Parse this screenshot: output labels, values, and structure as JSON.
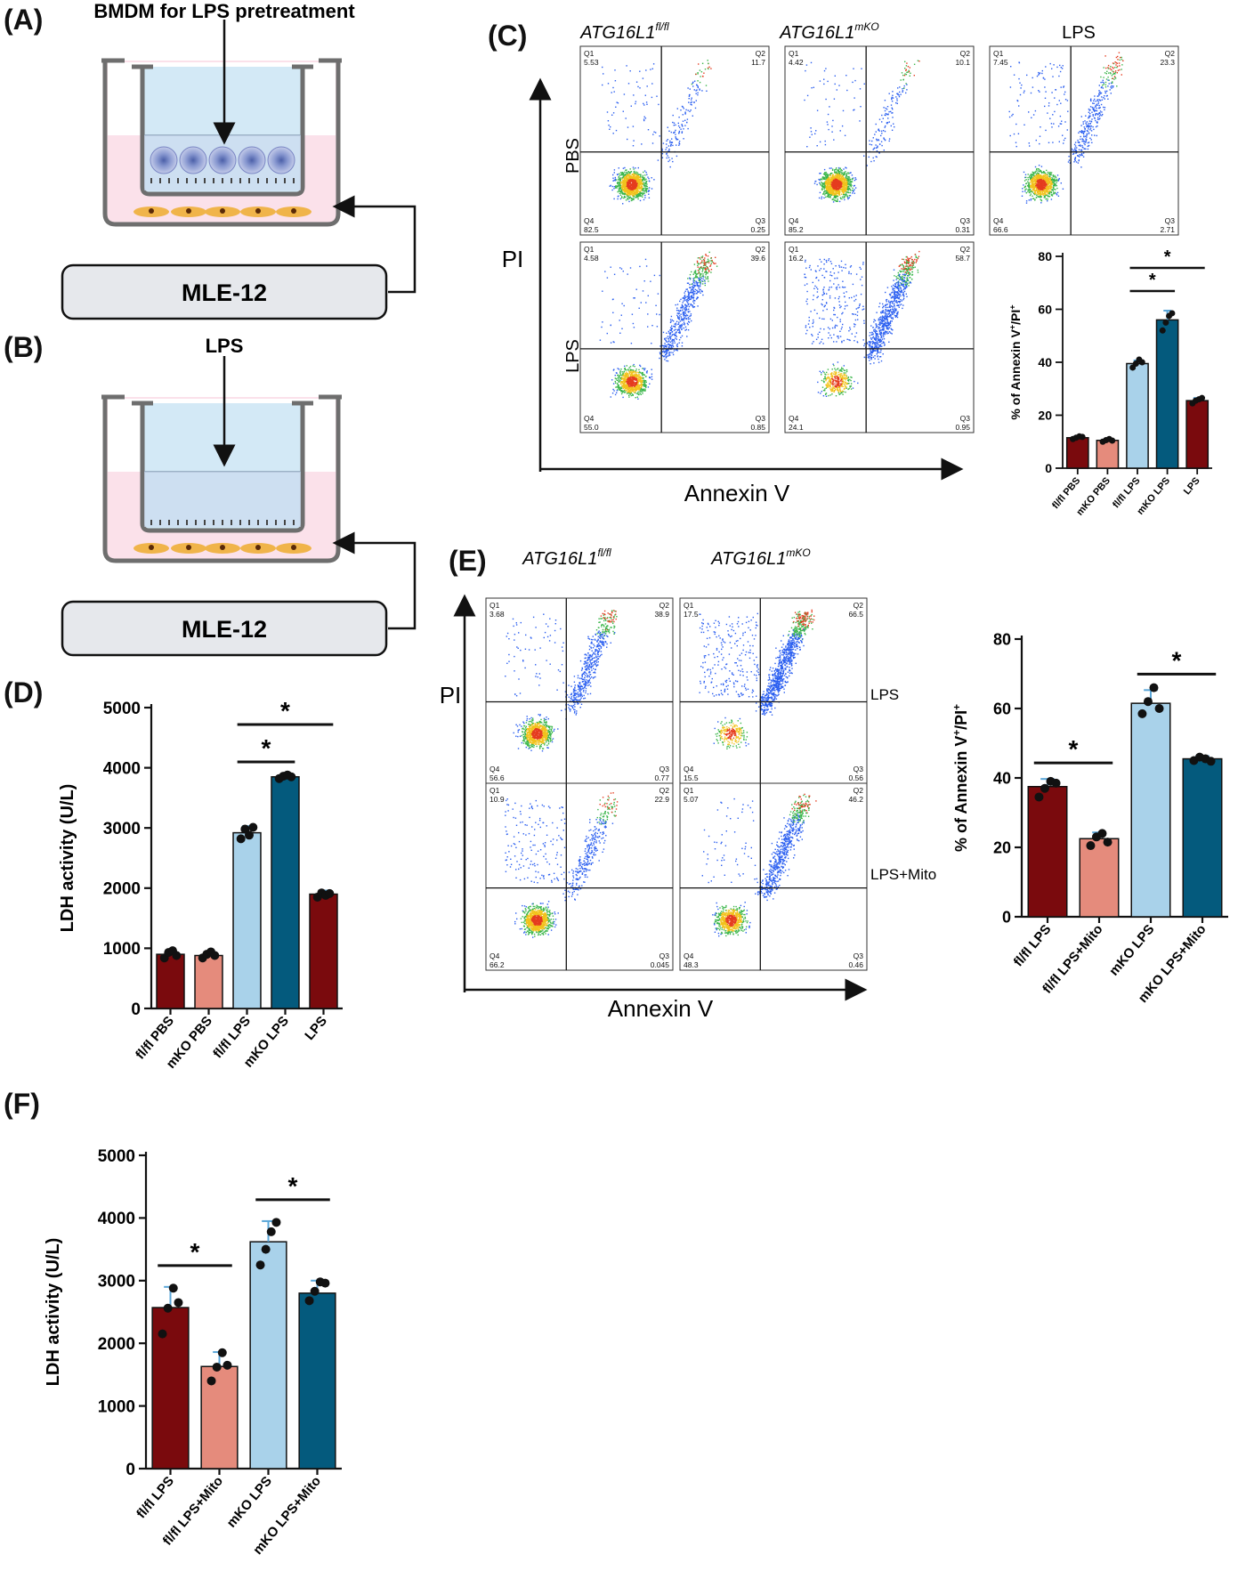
{
  "panels": {
    "A": {
      "letter": "(A)",
      "top_label": "BMDM for LPS pretreatment",
      "box_label": "MLE-12"
    },
    "B": {
      "letter": "(B)",
      "top_label": "LPS",
      "box_label": "MLE-12"
    },
    "C": {
      "letter": "(C)",
      "col_titles": [
        "ATG16L1",
        "ATG16L1",
        "LPS"
      ],
      "col_title_sup": [
        "fl/fl",
        "mKO",
        ""
      ],
      "row_labels": [
        "PBS",
        "LPS"
      ],
      "y_axis": "PI",
      "x_axis": "Annexin V",
      "plots": [
        {
          "q1": "5.53",
          "q2": "11.7",
          "q3": "0.25",
          "q4": "82.5"
        },
        {
          "q1": "4.42",
          "q2": "10.1",
          "q3": "0.31",
          "q4": "85.2"
        },
        {
          "q1": "7.45",
          "q2": "23.3",
          "q3": "2.71",
          "q4": "66.6"
        },
        {
          "q1": "4.58",
          "q2": "39.6",
          "q3": "0.85",
          "q4": "55.0"
        },
        {
          "q1": "16.2",
          "q2": "58.7",
          "q3": "0.95",
          "q4": "24.1"
        }
      ]
    },
    "D": {
      "letter": "(D)"
    },
    "E": {
      "letter": "(E)",
      "col_titles": [
        "ATG16L1",
        "ATG16L1"
      ],
      "col_title_sup": [
        "fl/fl",
        "mKO"
      ],
      "row_labels": [
        "LPS",
        "LPS+Mito"
      ],
      "y_axis": "PI",
      "x_axis": "Annexin V",
      "plots": [
        {
          "q1": "3.68",
          "q2": "38.9",
          "q3": "0.77",
          "q4": "56.6"
        },
        {
          "q1": "17.5",
          "q2": "66.5",
          "q3": "0.56",
          "q4": "15.5"
        },
        {
          "q1": "10.9",
          "q2": "22.9",
          "q3": "0.045",
          "q4": "66.2"
        },
        {
          "q1": "5.07",
          "q2": "46.2",
          "q3": "0.46",
          "q4": "48.3"
        }
      ]
    },
    "F": {
      "letter": "(F)"
    }
  },
  "quad_labels": {
    "q1": "Q1",
    "q2": "Q2",
    "q3": "Q3",
    "q4": "Q4"
  },
  "colors": {
    "dark_red": "#7a0a0d",
    "salmon": "#e58b7c",
    "light_blue": "#a9d2ea",
    "dark_teal": "#045a7d",
    "well_blue": "#d3e9f6",
    "medium_pink": "#fbe1ea",
    "cell_tan": "#f0b44a"
  },
  "chart_data": [
    {
      "id": "C-bar",
      "type": "bar",
      "categories": [
        "fl/fl PBS",
        "mKO PBS",
        "fl/fl LPS",
        "mKO LPS",
        "LPS"
      ],
      "values": [
        11.5,
        10.5,
        39.5,
        56,
        25.5
      ],
      "errors": [
        0.6,
        0.6,
        1.2,
        3.5,
        1.0
      ],
      "points": [
        [
          11,
          11.5,
          12,
          11.8
        ],
        [
          10,
          10.6,
          11,
          10.4
        ],
        [
          38,
          39.5,
          41,
          40
        ],
        [
          52,
          55,
          57.5,
          58.5
        ],
        [
          24.5,
          25.5,
          26,
          26.5
        ]
      ],
      "colors": [
        "#7a0a0d",
        "#e58b7c",
        "#a9d2ea",
        "#045a7d",
        "#7a0a0d"
      ],
      "ylabel": "% of Annexin V",
      "ylabel_sup": "+",
      "ylabel_tail": "/PI",
      "ylabel_tail_sup": "+",
      "ylim": [
        0,
        80
      ],
      "yticks": [
        0,
        20,
        40,
        60,
        80
      ],
      "significance": [
        {
          "from": 2,
          "to": 3,
          "label": "*"
        },
        {
          "from": 2,
          "to": 4,
          "label": "*"
        }
      ]
    },
    {
      "id": "D",
      "type": "bar",
      "categories": [
        "fl/fl PBS",
        "mKO PBS",
        "fl/fl LPS",
        "mKO LPS",
        "LPS"
      ],
      "values": [
        900,
        880,
        2920,
        3850,
        1900
      ],
      "errors": [
        60,
        50,
        110,
        40,
        60
      ],
      "points": [
        [
          840,
          930,
          960,
          880
        ],
        [
          840,
          900,
          940,
          880
        ],
        [
          2820,
          2980,
          2880,
          3010
        ],
        [
          3820,
          3860,
          3880,
          3850
        ],
        [
          1850,
          1920,
          1880,
          1910
        ]
      ],
      "colors": [
        "#7a0a0d",
        "#e58b7c",
        "#a9d2ea",
        "#045a7d",
        "#7a0a0d"
      ],
      "ylabel": "LDH activity (U/L)",
      "ylim": [
        0,
        5000
      ],
      "yticks": [
        0,
        1000,
        2000,
        3000,
        4000,
        5000
      ],
      "significance": [
        {
          "from": 2,
          "to": 3,
          "label": "*"
        },
        {
          "from": 2,
          "to": 4,
          "label": "*"
        }
      ]
    },
    {
      "id": "E-bar",
      "type": "bar",
      "categories": [
        "fl/fl LPS",
        "fl/fl LPS+Mito",
        "mKO LPS",
        "mKO LPS+Mito"
      ],
      "values": [
        37.5,
        22.5,
        61.5,
        45.5
      ],
      "errors": [
        2.2,
        1.8,
        3.8,
        0.8
      ],
      "points": [
        [
          34.5,
          37,
          39,
          38.5
        ],
        [
          20.5,
          23,
          24,
          21.5
        ],
        [
          58.5,
          62,
          66,
          60
        ],
        [
          45,
          46,
          45.5,
          44.8
        ]
      ],
      "colors": [
        "#7a0a0d",
        "#e58b7c",
        "#a9d2ea",
        "#045a7d"
      ],
      "ylabel": "% of Annexin V",
      "ylabel_sup": "+",
      "ylabel_tail": "/PI",
      "ylabel_tail_sup": "+",
      "ylim": [
        0,
        80
      ],
      "yticks": [
        0,
        20,
        40,
        60,
        80
      ],
      "significance": [
        {
          "from": 0,
          "to": 1,
          "label": "*"
        },
        {
          "from": 2,
          "to": 3,
          "label": "*"
        }
      ]
    },
    {
      "id": "F",
      "type": "bar",
      "categories": [
        "fl/fl LPS",
        "fl/fl LPS+Mito",
        "mKO LPS",
        "mKO LPS+Mito"
      ],
      "values": [
        2570,
        1630,
        3620,
        2800
      ],
      "errors": [
        330,
        230,
        330,
        200
      ],
      "points": [
        [
          2150,
          2560,
          2880,
          2650
        ],
        [
          1400,
          1620,
          1850,
          1650
        ],
        [
          3250,
          3500,
          3780,
          3930
        ],
        [
          2680,
          2830,
          2980,
          2960
        ]
      ],
      "colors": [
        "#7a0a0d",
        "#e58b7c",
        "#a9d2ea",
        "#045a7d"
      ],
      "ylabel": "LDH activity (U/L)",
      "ylim": [
        0,
        5000
      ],
      "yticks": [
        0,
        1000,
        2000,
        3000,
        4000,
        5000
      ],
      "significance": [
        {
          "from": 0,
          "to": 1,
          "label": "*"
        },
        {
          "from": 2,
          "to": 3,
          "label": "*"
        }
      ]
    }
  ]
}
